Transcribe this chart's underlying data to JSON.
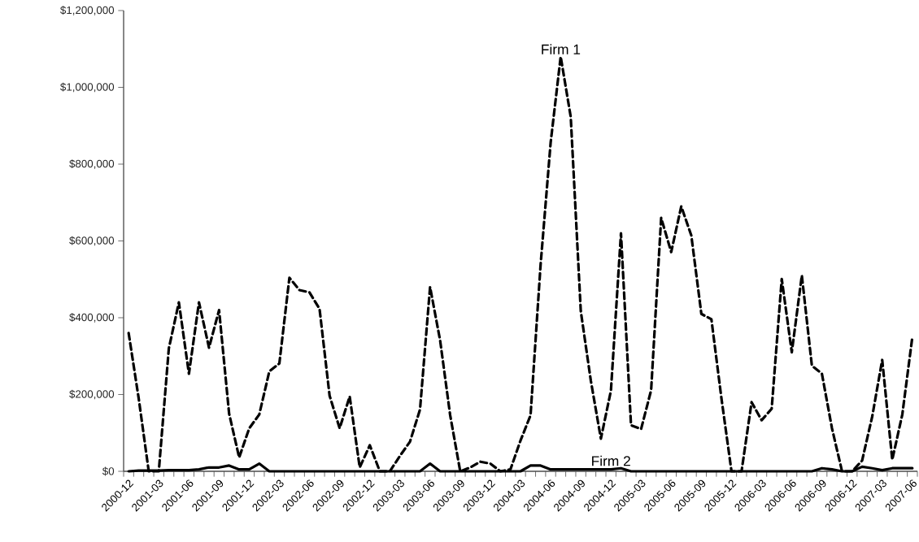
{
  "chart_data": {
    "type": "line",
    "categories": [
      "2000-12",
      null,
      null,
      "2001-03",
      null,
      null,
      "2001-06",
      null,
      null,
      "2001-09",
      null,
      null,
      "2001-12",
      null,
      null,
      "2002-03",
      null,
      null,
      "2002-06",
      null,
      null,
      "2002-09",
      null,
      null,
      "2002-12",
      null,
      null,
      "2003-03",
      null,
      null,
      "2003-06",
      null,
      null,
      "2003-09",
      null,
      null,
      "2003-12",
      null,
      null,
      "2004-03",
      null,
      null,
      "2004-06",
      null,
      null,
      "2004-09",
      null,
      null,
      "2004-12",
      null,
      null,
      "2005-03",
      null,
      null,
      "2005-06",
      null,
      null,
      "2005-09",
      null,
      null,
      "2005-12",
      null,
      null,
      "2006-03",
      null,
      null,
      "2006-06",
      null,
      null,
      "2006-09",
      null,
      null,
      "2006-12",
      null,
      null,
      "2007-03",
      null,
      null,
      "2007-06"
    ],
    "series": [
      {
        "name": "Firm 1",
        "color": "#000000",
        "line_style": "dashed",
        "values": [
          360000,
          190000,
          0,
          0,
          320000,
          440000,
          254000,
          440000,
          322000,
          420000,
          150000,
          36000,
          112000,
          148000,
          260000,
          281000,
          504000,
          472000,
          466000,
          423000,
          197000,
          112000,
          195000,
          10000,
          68000,
          0,
          0,
          40000,
          77000,
          161000,
          480000,
          341000,
          146000,
          0,
          10000,
          25000,
          20000,
          0,
          5000,
          80000,
          146000,
          538000,
          856000,
          1080000,
          923000,
          417000,
          236000,
          85000,
          210000,
          620000,
          120000,
          110000,
          211000,
          660000,
          571000,
          690000,
          614000,
          410000,
          396000,
          190000,
          0,
          0,
          180000,
          133000,
          163000,
          501000,
          310000,
          510000,
          275000,
          254000,
          112000,
          0,
          0,
          28000,
          142000,
          290000,
          30000,
          148000,
          350000
        ]
      },
      {
        "name": "Firm 2",
        "color": "#000000",
        "line_style": "solid",
        "values": [
          0,
          2000,
          2000,
          2000,
          3000,
          3000,
          3000,
          5000,
          10000,
          10000,
          15000,
          5000,
          5000,
          20000,
          0,
          0,
          0,
          0,
          0,
          0,
          0,
          0,
          0,
          0,
          0,
          0,
          0,
          0,
          0,
          0,
          20000,
          0,
          0,
          0,
          0,
          0,
          0,
          0,
          0,
          0,
          15000,
          15000,
          5000,
          5000,
          5000,
          5000,
          5000,
          5000,
          5000,
          8000,
          0,
          0,
          0,
          0,
          0,
          0,
          0,
          0,
          0,
          0,
          0,
          0,
          0,
          0,
          0,
          0,
          0,
          0,
          0,
          8000,
          5000,
          0,
          0,
          12000,
          8000,
          3000,
          8000,
          8000,
          8000
        ]
      }
    ],
    "ylim": [
      0,
      1200000
    ],
    "yticks": [
      {
        "value": 0,
        "label": "$0"
      },
      {
        "value": 200000,
        "label": "$200,000"
      },
      {
        "value": 400000,
        "label": "$400,000"
      },
      {
        "value": 600000,
        "label": "$600,000"
      },
      {
        "value": 800000,
        "label": "$800,000"
      },
      {
        "value": 1000000,
        "label": "$1,000,000"
      },
      {
        "value": 1200000,
        "label": "$1,200,000"
      }
    ],
    "grid": false,
    "legend": false
  }
}
